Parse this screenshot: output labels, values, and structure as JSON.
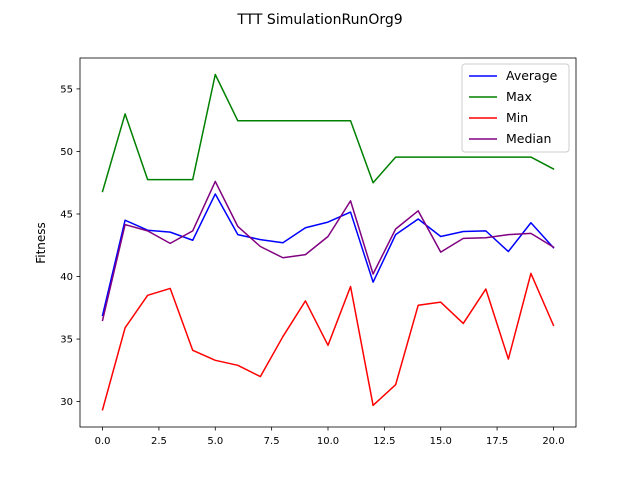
{
  "chart_data": {
    "type": "line",
    "title": "TTT SimulationRunOrg9",
    "xlabel": "",
    "ylabel": "Fitness",
    "xlim": [
      -1.0,
      21.0
    ],
    "ylim": [
      27.97,
      57.47
    ],
    "xticks": [
      0.0,
      2.5,
      5.0,
      7.5,
      10.0,
      12.5,
      15.0,
      17.5,
      20.0
    ],
    "xtick_labels": [
      "0.0",
      "2.5",
      "5.0",
      "7.5",
      "10.0",
      "12.5",
      "15.0",
      "17.5",
      "20.0"
    ],
    "yticks": [
      30,
      35,
      40,
      45,
      50,
      55
    ],
    "ytick_labels": [
      "30",
      "35",
      "40",
      "45",
      "50",
      "55"
    ],
    "grid": false,
    "legend_position": "top-right",
    "x": [
      0,
      1,
      2,
      3,
      4,
      5,
      6,
      7,
      8,
      9,
      10,
      11,
      12,
      13,
      14,
      15,
      16,
      17,
      18,
      19,
      20
    ],
    "series": [
      {
        "name": "Average",
        "color": "#0000ff",
        "values": [
          36.9,
          44.5,
          43.7,
          43.55,
          42.9,
          46.6,
          43.35,
          42.95,
          42.7,
          43.9,
          44.35,
          45.15,
          39.55,
          43.35,
          44.6,
          43.2,
          43.6,
          43.65,
          42.0,
          44.3,
          42.3
        ]
      },
      {
        "name": "Max",
        "color": "#008000",
        "values": [
          46.8,
          53.0,
          47.75,
          47.75,
          47.75,
          56.15,
          52.45,
          52.45,
          52.45,
          52.45,
          52.45,
          52.45,
          47.5,
          49.55,
          49.55,
          49.55,
          49.55,
          49.55,
          49.55,
          49.55,
          48.6
        ]
      },
      {
        "name": "Min",
        "color": "#ff0000",
        "values": [
          29.35,
          35.9,
          38.5,
          39.05,
          34.1,
          33.3,
          32.9,
          32.0,
          35.2,
          38.05,
          34.5,
          39.2,
          29.7,
          31.35,
          37.7,
          37.95,
          36.25,
          39.0,
          33.4,
          40.25,
          36.1
        ]
      },
      {
        "name": "Median",
        "color": "#800080",
        "values": [
          36.5,
          44.15,
          43.65,
          42.65,
          43.65,
          47.6,
          44.0,
          42.4,
          41.5,
          41.75,
          43.2,
          46.05,
          40.2,
          43.8,
          45.25,
          41.95,
          43.05,
          43.1,
          43.35,
          43.45,
          42.35
        ]
      }
    ]
  }
}
